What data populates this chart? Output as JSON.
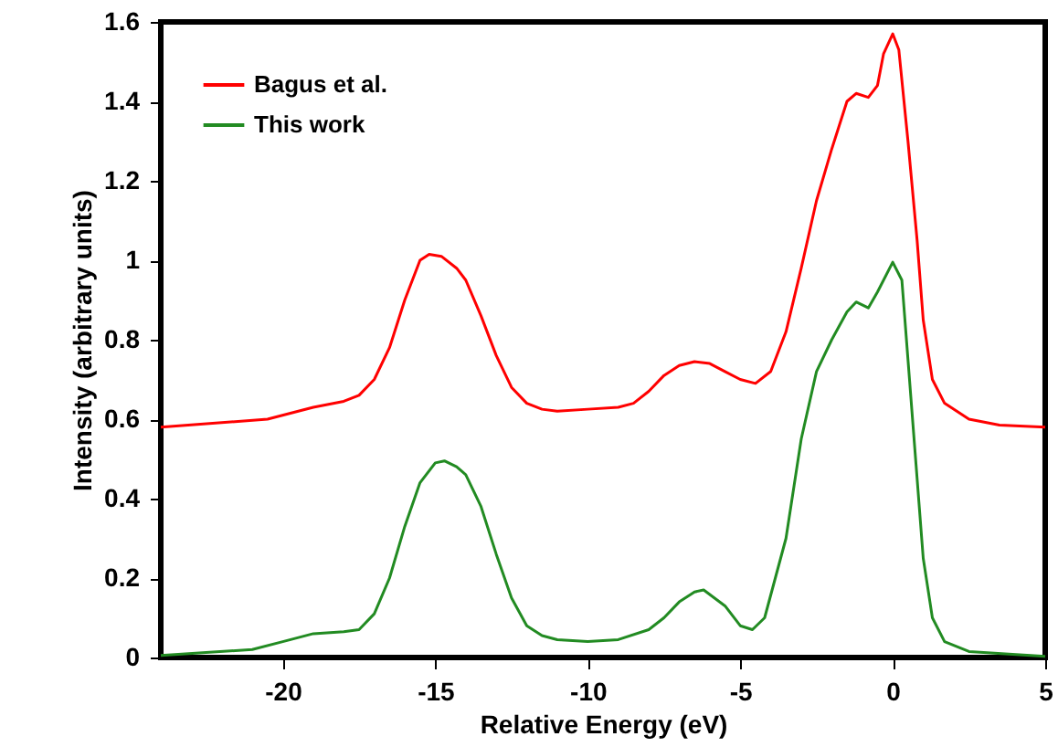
{
  "chart_data": {
    "type": "line",
    "xlabel": "Relative Energy (eV)",
    "ylabel": "Intensity (arbitrary units)",
    "xlim": [
      -24,
      5
    ],
    "xticks": [
      -20,
      -15,
      -10,
      -5,
      0,
      5
    ],
    "ylim": [
      0,
      1.6
    ],
    "yticks": [
      0,
      0.2,
      0.4,
      0.6,
      0.8,
      1,
      1.2,
      1.4,
      1.6
    ],
    "grid": false,
    "legend": "top left",
    "marker": "none",
    "line_style": "solid",
    "series": [
      {
        "name": "Bagus et al.",
        "color": "#ff0000",
        "x": [
          -24,
          -20.5,
          -19,
          -18,
          -17.5,
          -17,
          -16.5,
          -16,
          -15.5,
          -15.2,
          -14.8,
          -14.3,
          -14,
          -13.5,
          -13,
          -12.5,
          -12,
          -11.5,
          -11,
          -10,
          -9,
          -8.5,
          -8,
          -7.5,
          -7,
          -6.5,
          -6,
          -5.5,
          -5,
          -4.5,
          -4,
          -3.5,
          -3,
          -2.5,
          -2,
          -1.5,
          -1.2,
          -0.8,
          -0.5,
          -0.3,
          0,
          0.2,
          0.5,
          0.8,
          1,
          1.3,
          1.7,
          2.5,
          3.5,
          5
        ],
        "values": [
          0.58,
          0.6,
          0.63,
          0.645,
          0.66,
          0.7,
          0.78,
          0.9,
          1.0,
          1.015,
          1.01,
          0.98,
          0.95,
          0.86,
          0.76,
          0.68,
          0.64,
          0.625,
          0.62,
          0.625,
          0.63,
          0.64,
          0.67,
          0.71,
          0.735,
          0.745,
          0.74,
          0.72,
          0.7,
          0.69,
          0.72,
          0.82,
          0.98,
          1.15,
          1.28,
          1.4,
          1.42,
          1.41,
          1.44,
          1.52,
          1.57,
          1.53,
          1.3,
          1.05,
          0.85,
          0.7,
          0.64,
          0.6,
          0.585,
          0.58
        ]
      },
      {
        "name": "This work",
        "color": "#228b22",
        "x": [
          -24,
          -21,
          -20,
          -19,
          -18,
          -17.5,
          -17,
          -16.5,
          -16,
          -15.5,
          -15,
          -14.7,
          -14.3,
          -14,
          -13.5,
          -13,
          -12.5,
          -12,
          -11.5,
          -11,
          -10,
          -9,
          -8,
          -7.5,
          -7,
          -6.5,
          -6.2,
          -5.5,
          -5,
          -4.6,
          -4.2,
          -3.5,
          -3,
          -2.5,
          -2,
          -1.5,
          -1.2,
          -0.8,
          -0.5,
          0,
          0.3,
          0.5,
          0.8,
          1,
          1.3,
          1.7,
          2.5,
          5
        ],
        "values": [
          0.005,
          0.02,
          0.04,
          0.06,
          0.065,
          0.07,
          0.11,
          0.2,
          0.33,
          0.44,
          0.49,
          0.495,
          0.48,
          0.46,
          0.38,
          0.26,
          0.15,
          0.08,
          0.055,
          0.045,
          0.04,
          0.045,
          0.07,
          0.1,
          0.14,
          0.165,
          0.17,
          0.13,
          0.08,
          0.07,
          0.1,
          0.3,
          0.55,
          0.72,
          0.8,
          0.87,
          0.895,
          0.88,
          0.92,
          0.995,
          0.95,
          0.75,
          0.45,
          0.25,
          0.1,
          0.04,
          0.015,
          0.003
        ]
      }
    ]
  }
}
